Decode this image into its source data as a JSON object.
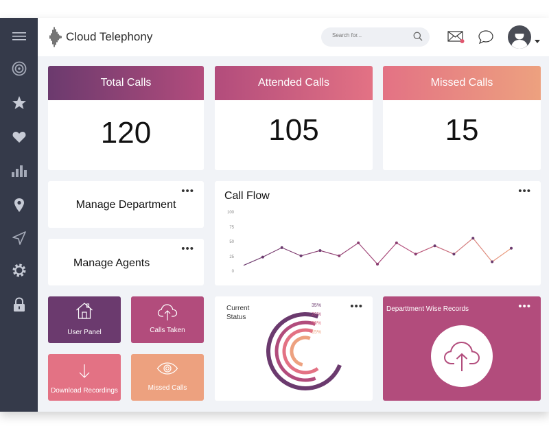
{
  "app": {
    "title": "Cloud Telephony"
  },
  "search": {
    "placeholder": "Search for..."
  },
  "stats": [
    {
      "label": "Total Calls",
      "value": "120"
    },
    {
      "label": "Attended Calls",
      "value": "105"
    },
    {
      "label": "Missed Calls",
      "value": "15"
    }
  ],
  "panels": {
    "manage_department": "Manage Department",
    "manage_agents": "Manage Agents",
    "more": "•••"
  },
  "tiles": {
    "user_panel": "User Panel",
    "calls_taken": "Calls Taken",
    "download_recordings": "Download Recordings",
    "missed_calls": "Missed Calls"
  },
  "call_flow": {
    "title": "Call Flow",
    "y_ticks": [
      "100",
      "75",
      "50",
      "25",
      "0"
    ]
  },
  "current_status": {
    "title_line1": "Current",
    "title_line2": "Status",
    "legend": [
      "35%",
      "20%",
      "30%",
      "15%"
    ]
  },
  "department_records": {
    "title": "Departtment Wise Records"
  },
  "colors": {
    "sidebar": "#353a4a",
    "purple": "#6b3a6e",
    "magenta": "#b24c7c",
    "pink": "#e37284",
    "peach": "#eda17f"
  },
  "icons": {
    "sidebar": [
      "menu-icon",
      "target-icon",
      "star-icon",
      "heart-icon",
      "bar-chart-icon",
      "location-pin-icon",
      "send-icon",
      "gear-icon",
      "lock-icon"
    ],
    "topbar": [
      "waveform-logo-icon",
      "search-icon",
      "mail-icon",
      "chat-icon",
      "avatar",
      "chevron-down-icon"
    ]
  },
  "chart_data": [
    {
      "type": "line",
      "title": "Call Flow",
      "x": [
        1,
        2,
        3,
        4,
        5,
        6,
        7,
        8,
        9,
        10,
        11,
        12,
        13,
        14,
        15
      ],
      "series": [
        {
          "values": [
            12,
            26,
            42,
            28,
            37,
            28,
            50,
            14,
            50,
            31,
            45,
            31,
            58,
            18,
            41
          ]
        }
      ],
      "ylim": [
        0,
        100
      ],
      "y_ticks": [
        0,
        25,
        50,
        75,
        100
      ]
    },
    {
      "type": "pie",
      "title": "Current Status",
      "categories": [
        "35%",
        "20%",
        "30%",
        "15%"
      ],
      "values": [
        35,
        20,
        30,
        15
      ]
    }
  ]
}
